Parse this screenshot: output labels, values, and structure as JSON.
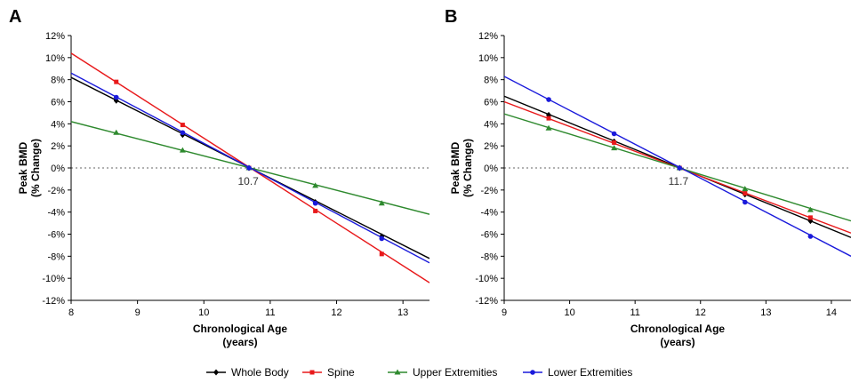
{
  "chart_data": [
    {
      "type": "line",
      "panel_label": "A",
      "xlabel": "Chronological Age",
      "xlabel_unit": "(years)",
      "ylabel": "Peak BMD",
      "ylabel_unit": "(% Change)",
      "xlim": [
        8,
        13.4
      ],
      "ylim": [
        -12,
        12
      ],
      "x_ticks": [
        8,
        9,
        10,
        11,
        12,
        13
      ],
      "y_ticks": [
        -12,
        -10,
        -8,
        -6,
        -4,
        -2,
        0,
        2,
        4,
        6,
        8,
        10,
        12
      ],
      "y_tick_labels": [
        "-12%",
        "-10%",
        "-8%",
        "-6%",
        "-4%",
        "-2%",
        "0%",
        "2%",
        "4%",
        "6%",
        "8%",
        "10%",
        "12%"
      ],
      "reference_line_y": 0,
      "annotation": {
        "text": "10.7",
        "x": 10.7,
        "y": 0
      },
      "series": [
        {
          "name": "Whole Body",
          "color": "#000000",
          "marker": "diamond",
          "x": [
            8,
            13.4
          ],
          "y": [
            8.2,
            -8.2
          ],
          "marker_x": [
            8.68,
            9.68,
            10.68,
            11.68,
            12.68
          ],
          "marker_y": [
            6.1,
            3.0,
            0.0,
            -3.1,
            -6.2
          ]
        },
        {
          "name": "Spine",
          "color": "#e8191b",
          "marker": "square",
          "x": [
            8,
            13.4
          ],
          "y": [
            10.4,
            -10.4
          ],
          "marker_x": [
            8.68,
            9.68,
            10.68,
            11.68,
            12.68
          ],
          "marker_y": [
            7.8,
            3.9,
            0.0,
            -3.9,
            -7.8
          ]
        },
        {
          "name": "Upper Extremities",
          "color": "#2f8a2f",
          "marker": "triangle",
          "x": [
            8,
            13.4
          ],
          "y": [
            4.2,
            -4.2
          ],
          "marker_x": [
            8.68,
            9.68,
            10.68,
            11.68,
            12.68
          ],
          "marker_y": [
            3.2,
            1.6,
            0.0,
            -1.6,
            -3.2
          ]
        },
        {
          "name": "Lower Extremities",
          "color": "#1a1adb",
          "marker": "circle",
          "x": [
            8,
            13.4
          ],
          "y": [
            8.6,
            -8.6
          ],
          "marker_x": [
            8.68,
            9.68,
            10.68,
            11.68,
            12.68
          ],
          "marker_y": [
            6.4,
            3.2,
            0.0,
            -3.2,
            -6.4
          ]
        }
      ]
    },
    {
      "type": "line",
      "panel_label": "B",
      "xlabel": "Chronological Age",
      "xlabel_unit": "(years)",
      "ylabel": "Peak BMD",
      "ylabel_unit": "(% Change)",
      "xlim": [
        9,
        14.3
      ],
      "ylim": [
        -12,
        12
      ],
      "x_ticks": [
        9,
        10,
        11,
        12,
        13,
        14
      ],
      "y_ticks": [
        -12,
        -10,
        -8,
        -6,
        -4,
        -2,
        0,
        2,
        4,
        6,
        8,
        10,
        12
      ],
      "y_tick_labels": [
        "-12%",
        "-10%",
        "-8%",
        "-6%",
        "-4%",
        "-2%",
        "0%",
        "2%",
        "4%",
        "6%",
        "8%",
        "10%",
        "12%"
      ],
      "reference_line_y": 0,
      "annotation": {
        "text": "11.7",
        "x": 11.7,
        "y": 0
      },
      "series": [
        {
          "name": "Whole Body",
          "color": "#000000",
          "marker": "diamond",
          "x": [
            9,
            14.3
          ],
          "y": [
            6.5,
            -6.3
          ],
          "marker_x": [
            9.68,
            10.68,
            11.68,
            12.68,
            13.68
          ],
          "marker_y": [
            4.8,
            2.4,
            0.0,
            -2.4,
            -4.8
          ]
        },
        {
          "name": "Spine",
          "color": "#e8191b",
          "marker": "square",
          "x": [
            9,
            14.3
          ],
          "y": [
            6.0,
            -5.9
          ],
          "marker_x": [
            9.68,
            10.68,
            11.68,
            12.68,
            13.68
          ],
          "marker_y": [
            4.5,
            2.3,
            0.0,
            -2.3,
            -4.5
          ]
        },
        {
          "name": "Upper Extremities",
          "color": "#2f8a2f",
          "marker": "triangle",
          "x": [
            9,
            14.3
          ],
          "y": [
            4.9,
            -4.8
          ],
          "marker_x": [
            9.68,
            10.68,
            11.68,
            12.68,
            13.68
          ],
          "marker_y": [
            3.6,
            1.8,
            0.0,
            -1.9,
            -3.8
          ]
        },
        {
          "name": "Lower Extremities",
          "color": "#1a1adb",
          "marker": "circle",
          "x": [
            9,
            14.3
          ],
          "y": [
            8.3,
            -8.0
          ],
          "marker_x": [
            9.68,
            10.68,
            11.68,
            12.68,
            13.68
          ],
          "marker_y": [
            6.2,
            3.1,
            0.0,
            -3.1,
            -6.2
          ]
        }
      ]
    }
  ],
  "legend": [
    {
      "name": "Whole Body",
      "color": "#000000",
      "marker": "diamond"
    },
    {
      "name": "Spine",
      "color": "#e8191b",
      "marker": "square"
    },
    {
      "name": "Upper Extremities",
      "color": "#2f8a2f",
      "marker": "triangle"
    },
    {
      "name": "Lower Extremities",
      "color": "#1a1adb",
      "marker": "circle"
    }
  ],
  "legend_placement": "bottom-center"
}
